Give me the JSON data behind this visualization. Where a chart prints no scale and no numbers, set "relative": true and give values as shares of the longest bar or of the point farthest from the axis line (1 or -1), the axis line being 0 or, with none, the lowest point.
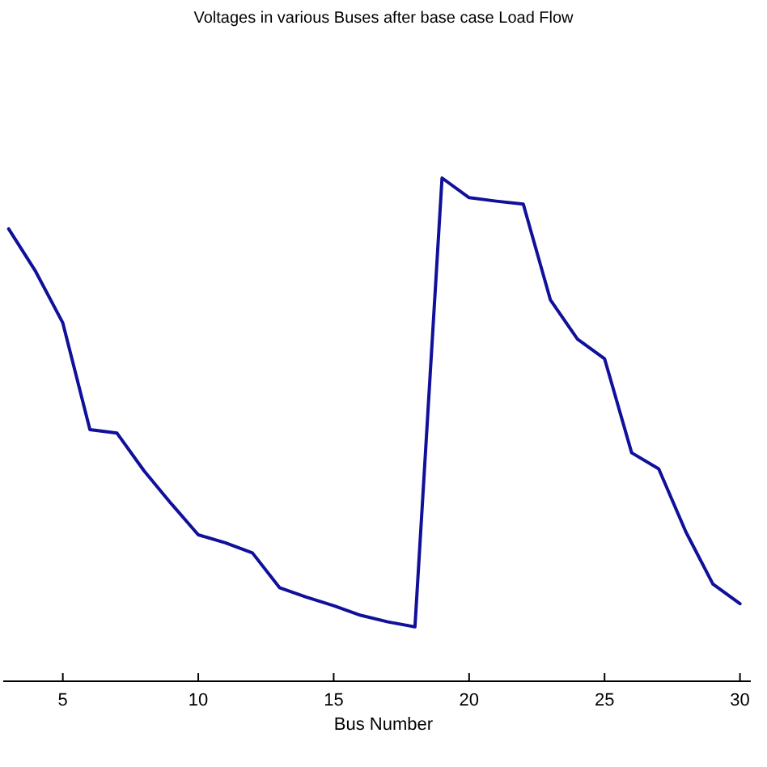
{
  "chart_data": {
    "type": "line",
    "title": "Voltages in various Buses after base case Load Flow",
    "xlabel": "Bus Number",
    "relative": true,
    "x": [
      3,
      4,
      5,
      6,
      7,
      8,
      9,
      10,
      11,
      12,
      13,
      14,
      15,
      16,
      17,
      18,
      19,
      20,
      21,
      22,
      23,
      24,
      25,
      26,
      27,
      28,
      29,
      30
    ],
    "xlim": [
      2.8,
      30.4
    ],
    "xticks": [
      5,
      10,
      15,
      20,
      25,
      30
    ],
    "grid": false,
    "marker": "none",
    "line_style": "solid",
    "series": [
      {
        "color": "#10109a",
        "values": [
          0.899,
          0.814,
          0.712,
          0.5,
          0.493,
          0.418,
          0.353,
          0.291,
          0.275,
          0.255,
          0.186,
          0.167,
          0.15,
          0.131,
          0.118,
          0.108,
          1,
          0.961,
          0.954,
          0.948,
          0.758,
          0.68,
          0.641,
          0.454,
          0.422,
          0.297,
          0.193,
          0.154
        ]
      }
    ]
  }
}
